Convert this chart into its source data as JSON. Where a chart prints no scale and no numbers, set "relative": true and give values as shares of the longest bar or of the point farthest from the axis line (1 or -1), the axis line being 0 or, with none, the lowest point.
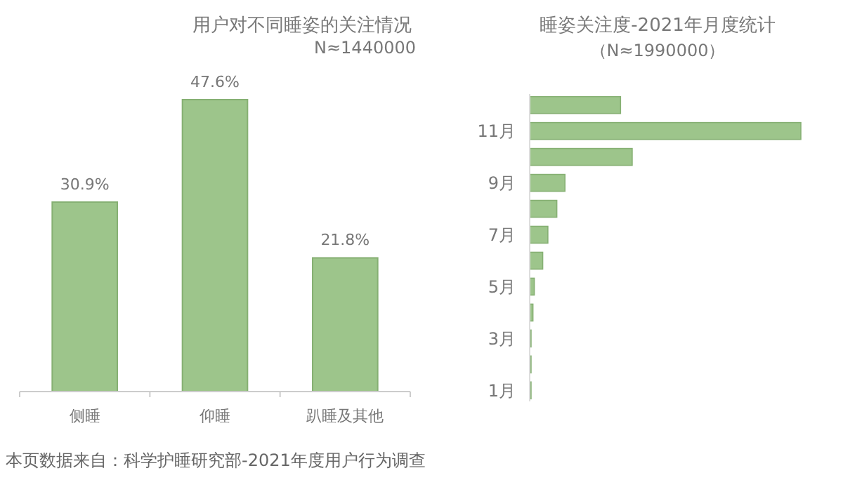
{
  "chart_data": [
    {
      "type": "bar",
      "title": "用户对不同睡姿的关注情况",
      "subtitle": "N≈1440000",
      "categories": [
        "侧睡",
        "仰睡",
        "趴睡及其他"
      ],
      "values": [
        30.9,
        47.6,
        21.8
      ],
      "value_labels": [
        "30.9%",
        "47.6%",
        "21.8%"
      ],
      "color": "#9dc58b",
      "annotations": [
        "本页数据来自：科学护睡研究部-2021年度用户行为调查"
      ]
    },
    {
      "type": "bar",
      "orientation": "horizontal",
      "relative": true,
      "title": "睡姿关注度-2021年月度统计",
      "subtitle": "（N≈1990000）",
      "categories": [
        null,
        "11月",
        null,
        "9月",
        null,
        "7月",
        null,
        "5月",
        null,
        "3月",
        null,
        "1月"
      ],
      "values": [
        0.335,
        1,
        0.378,
        0.13,
        0.1,
        0.067,
        0.048,
        0.017,
        0.012,
        0.005,
        0.005,
        0.005
      ],
      "color": "#9dc58b"
    }
  ]
}
